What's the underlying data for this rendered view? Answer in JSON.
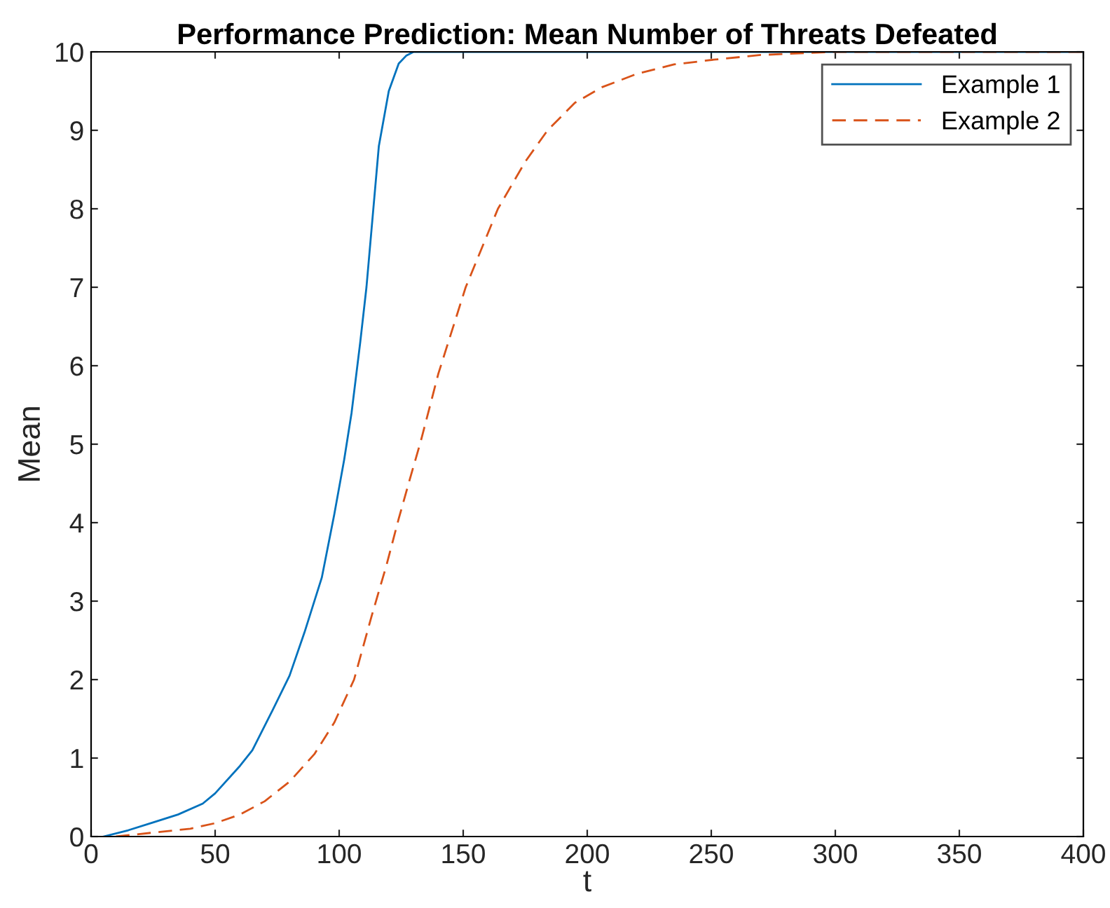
{
  "chart_data": {
    "type": "line",
    "title": "Performance Prediction: Mean Number of Threats Defeated",
    "xlabel": "t",
    "ylabel": "Mean",
    "xlim": [
      0,
      400
    ],
    "ylim": [
      0,
      10
    ],
    "xticks": [
      0,
      50,
      100,
      150,
      200,
      250,
      300,
      350,
      400
    ],
    "yticks": [
      0,
      1,
      2,
      3,
      4,
      5,
      6,
      7,
      8,
      9,
      10
    ],
    "legend": "top right",
    "grid": false,
    "series": [
      {
        "name": "Example 1",
        "color": "#0072bd",
        "line_style": "solid",
        "x": [
          5,
          15,
          25,
          35,
          45,
          50,
          60,
          65,
          73,
          80,
          86,
          93,
          98,
          102,
          105,
          108.5,
          111,
          116,
          120,
          124,
          127,
          130,
          135,
          150,
          200,
          300,
          400
        ],
        "values": [
          0,
          0.08,
          0.18,
          0.28,
          0.42,
          0.55,
          0.9,
          1.1,
          1.6,
          2.05,
          2.6,
          3.3,
          4.1,
          4.8,
          5.4,
          6.3,
          7,
          8.8,
          9.5,
          9.85,
          9.95,
          10,
          10,
          10,
          10,
          10,
          10
        ]
      },
      {
        "name": "Example 2",
        "color": "#d95319",
        "line_style": "dashed",
        "x": [
          10,
          25,
          40,
          50,
          60,
          70,
          80,
          90,
          98,
          106,
          113,
          119,
          124,
          128,
          133,
          140,
          145,
          151,
          164,
          175,
          184,
          195,
          206,
          220,
          235,
          251,
          270,
          300,
          350,
          400
        ],
        "values": [
          0,
          0.05,
          0.1,
          0.17,
          0.28,
          0.45,
          0.7,
          1.05,
          1.45,
          2,
          2.8,
          3.45,
          4.05,
          4.5,
          5.05,
          5.9,
          6.4,
          7,
          8,
          8.6,
          9,
          9.35,
          9.55,
          9.72,
          9.84,
          9.9,
          9.96,
          10,
          10,
          10
        ]
      }
    ]
  }
}
